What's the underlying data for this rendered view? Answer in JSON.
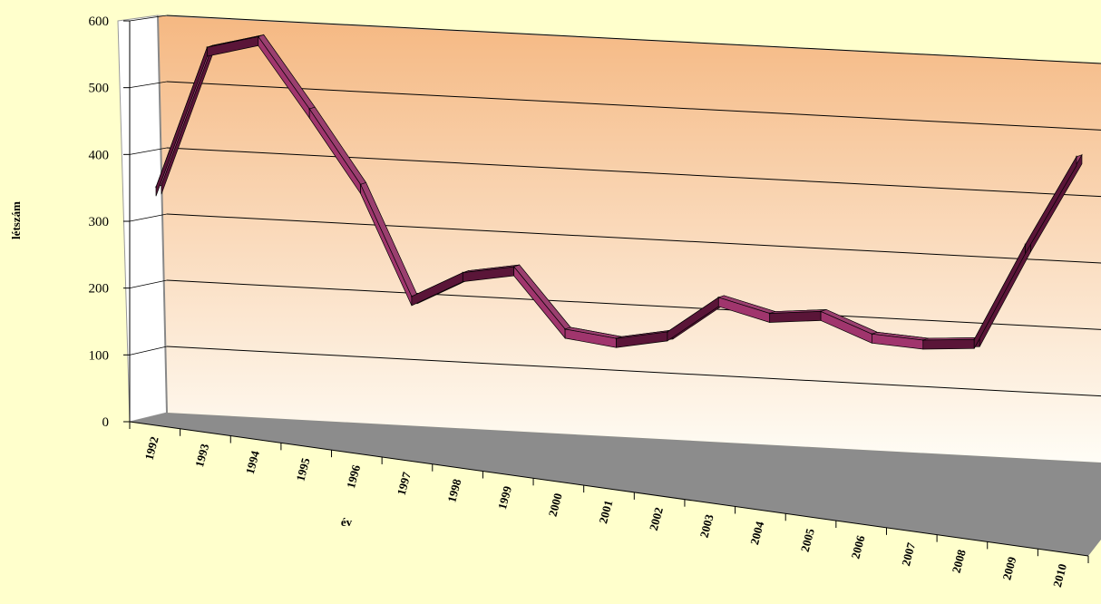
{
  "chart_data": {
    "type": "line",
    "title": "",
    "xlabel": "év",
    "ylabel": "létszám",
    "ylim": [
      0,
      600
    ],
    "yticks": [
      0,
      100,
      200,
      300,
      400,
      500,
      600
    ],
    "grid": true,
    "legend": "none",
    "render": "3d-ribbon",
    "categories": [
      "1992",
      "1993",
      "1994",
      "1995",
      "1996",
      "1997",
      "1998",
      "1999",
      "2000",
      "2001",
      "2002",
      "2003",
      "2004",
      "2005",
      "2006",
      "2007",
      "2008",
      "2009",
      "2010"
    ],
    "series": [
      {
        "values": [
          340,
          555,
          575,
          470,
          360,
          195,
          235,
          248,
          158,
          148,
          162,
          218,
          198,
          205,
          175,
          170,
          175,
          322,
          458
        ]
      }
    ],
    "colors": {
      "background": "#ffffcc",
      "wall_top": "#f5b882",
      "wall_bottom": "#fffdf6",
      "floor": "#8c8c8c",
      "ribbon_front": "#a0356d",
      "ribbon_top": "#9a3f6f",
      "ribbon_dark": "#5a1538"
    }
  }
}
